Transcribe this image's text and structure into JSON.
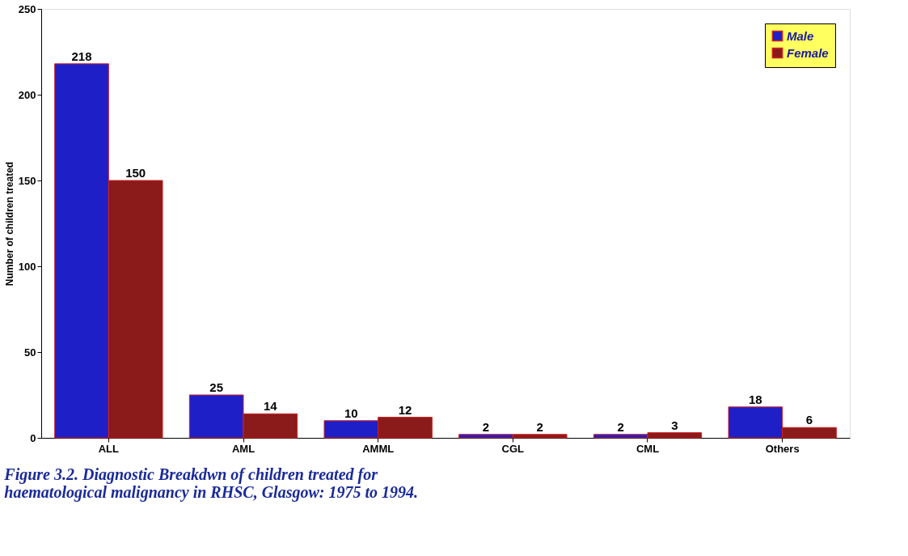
{
  "chart_data": {
    "type": "bar",
    "title": "Figure 3.2. Diagnostic Breakdwn of children treated for\nhaematological malignancy in RHSC, Glasgow: 1975 to 1994.",
    "ylabel": "Number of children treated",
    "categories": [
      "ALL",
      "AML",
      "AMML",
      "CGL",
      "CML",
      "Others"
    ],
    "series": [
      {
        "name": "Male",
        "color": "#1f1fc8",
        "values": [
          218,
          25,
          10,
          2,
          2,
          18
        ]
      },
      {
        "name": "Female",
        "color": "#8b1a1a",
        "values": [
          150,
          14,
          12,
          2,
          3,
          6
        ]
      }
    ],
    "ylim": [
      0,
      250
    ],
    "yticks": [
      0,
      50,
      100,
      150,
      200,
      250
    ],
    "grid": false,
    "legend": "top right",
    "data_labels": true
  }
}
